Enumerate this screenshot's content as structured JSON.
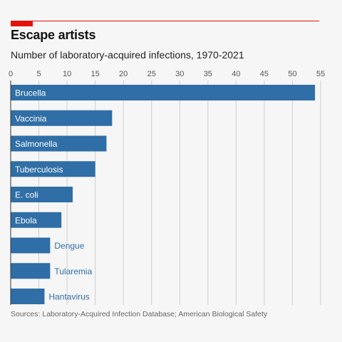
{
  "header": {
    "title": "Escape artists",
    "subtitle": "Number of laboratory-acquired infections, 1970-2021"
  },
  "footer": {
    "source": "Sources: Laboratory-Acquired Infection Database; American Biological Safety"
  },
  "colors": {
    "bar": "#2f6ea6",
    "accent": "#e3120b",
    "label_inside": "#ffffff",
    "label_outside": "#2f6ea6",
    "grid": "#cfcfcf",
    "axis": "#333333"
  },
  "chart_data": {
    "type": "bar",
    "orientation": "horizontal",
    "title": "Escape artists",
    "subtitle": "Number of laboratory-acquired infections, 1970-2021",
    "categories": [
      "Brucella",
      "Vaccinia",
      "Salmonella",
      "Tuberculosis",
      "E. coli",
      "Ebola",
      "Dengue",
      "Tularemia",
      "Hantavirus"
    ],
    "values": [
      54,
      18,
      17,
      15,
      11,
      9,
      7,
      7,
      6
    ],
    "xlim": [
      0,
      55
    ],
    "xticks": [
      0,
      5,
      10,
      15,
      20,
      25,
      30,
      35,
      40,
      45,
      50,
      55
    ],
    "grid": true,
    "xaxis_position": "top",
    "xlabel": "",
    "ylabel": ""
  }
}
